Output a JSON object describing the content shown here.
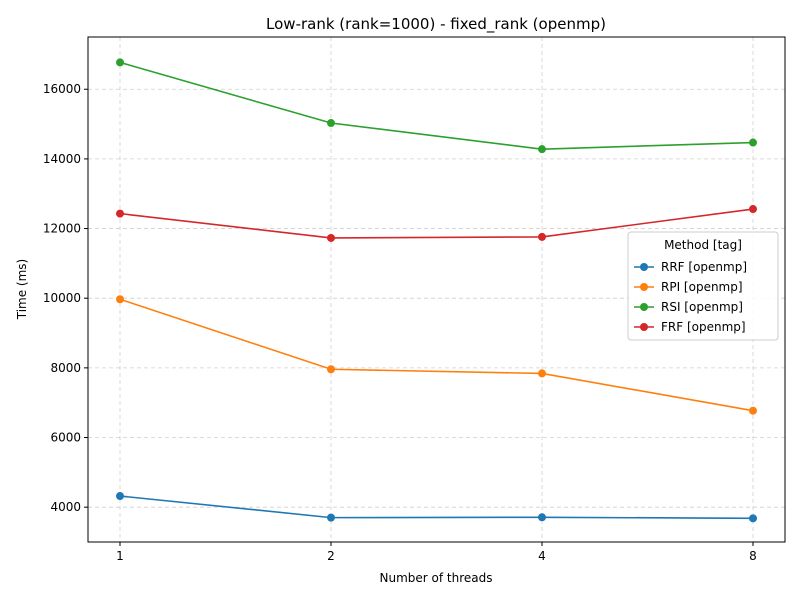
{
  "chart_data": {
    "type": "line",
    "title": "Low-rank (rank=1000) - fixed_rank (openmp)",
    "xlabel": "Number of threads",
    "ylabel": "Time (ms)",
    "x_categories": [
      "1",
      "2",
      "4",
      "8"
    ],
    "y_ticks": [
      4000,
      6000,
      8000,
      10000,
      12000,
      14000,
      16000
    ],
    "ylim": [
      3000,
      17500
    ],
    "grid": true,
    "legend": {
      "title": "Method [tag]",
      "placement": "center-right"
    },
    "series": [
      {
        "name": "RRF [openmp]",
        "color": "#1f77b4",
        "values": [
          4320,
          3700,
          3710,
          3680
        ]
      },
      {
        "name": "RPI [openmp]",
        "color": "#ff7f0e",
        "values": [
          9970,
          7960,
          7840,
          6770
        ]
      },
      {
        "name": "RSI [openmp]",
        "color": "#2ca02c",
        "values": [
          16770,
          15030,
          14280,
          14470
        ]
      },
      {
        "name": "FRF [openmp]",
        "color": "#d62728",
        "values": [
          12430,
          11730,
          11760,
          12560
        ]
      }
    ]
  }
}
